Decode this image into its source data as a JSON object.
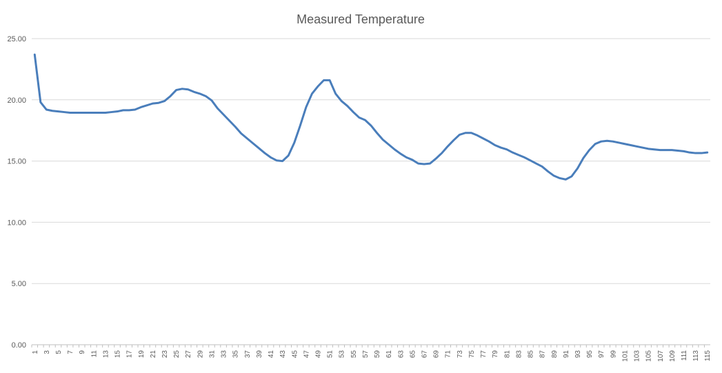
{
  "chart_data": {
    "type": "line",
    "title": "Measured Temperature",
    "xlabel": "",
    "ylabel": "",
    "ylim": [
      0,
      25
    ],
    "yticks": [
      "0.00",
      "5.00",
      "10.00",
      "15.00",
      "20.00",
      "25.00"
    ],
    "grid": true,
    "legend": "none",
    "colors": {
      "series": "#4a7ebb",
      "grid": "#d9d9d9",
      "text": "#595959"
    },
    "categories": [
      1,
      2,
      3,
      4,
      5,
      6,
      7,
      8,
      9,
      10,
      11,
      12,
      13,
      14,
      15,
      16,
      17,
      18,
      19,
      20,
      21,
      22,
      23,
      24,
      25,
      26,
      27,
      28,
      29,
      30,
      31,
      32,
      33,
      34,
      35,
      36,
      37,
      38,
      39,
      40,
      41,
      42,
      43,
      44,
      45,
      46,
      47,
      48,
      49,
      50,
      51,
      52,
      53,
      54,
      55,
      56,
      57,
      58,
      59,
      60,
      61,
      62,
      63,
      64,
      65,
      66,
      67,
      68,
      69,
      70,
      71,
      72,
      73,
      74,
      75,
      76,
      77,
      78,
      79,
      80,
      81,
      82,
      83,
      84,
      85,
      86,
      87,
      88,
      89,
      90,
      91,
      92,
      93,
      94,
      95,
      96,
      97,
      98,
      99,
      100,
      101,
      102,
      103,
      104,
      105,
      106,
      107,
      108,
      109,
      110,
      111,
      112,
      113,
      114,
      115
    ],
    "series": [
      {
        "values": [
          23.7,
          19.8,
          19.2,
          19.1,
          19.05,
          19.0,
          18.95,
          18.95,
          18.95,
          18.95,
          18.95,
          18.95,
          18.95,
          19.0,
          19.05,
          19.15,
          19.15,
          19.2,
          19.4,
          19.55,
          19.7,
          19.75,
          19.9,
          20.3,
          20.8,
          20.9,
          20.85,
          20.65,
          20.5,
          20.3,
          19.95,
          19.3,
          18.8,
          18.3,
          17.8,
          17.25,
          16.85,
          16.45,
          16.05,
          15.65,
          15.3,
          15.05,
          15.0,
          15.45,
          16.5,
          17.9,
          19.4,
          20.5,
          21.1,
          21.6,
          21.6,
          20.5,
          19.9,
          19.5,
          19.0,
          18.55,
          18.35,
          17.9,
          17.3,
          16.75,
          16.35,
          15.95,
          15.6,
          15.3,
          15.1,
          14.8,
          14.75,
          14.8,
          15.2,
          15.65,
          16.2,
          16.7,
          17.15,
          17.3,
          17.3,
          17.1,
          16.85,
          16.6,
          16.3,
          16.1,
          15.95,
          15.7,
          15.5,
          15.3,
          15.05,
          14.8,
          14.55,
          14.15,
          13.8,
          13.6,
          13.5,
          13.75,
          14.4,
          15.25,
          15.9,
          16.4,
          16.6,
          16.65,
          16.6,
          16.5,
          16.4,
          16.3,
          16.2,
          16.1,
          16.0,
          15.95,
          15.9,
          15.9,
          15.9,
          15.85,
          15.8,
          15.7,
          15.65,
          15.65,
          15.7
        ]
      }
    ]
  }
}
